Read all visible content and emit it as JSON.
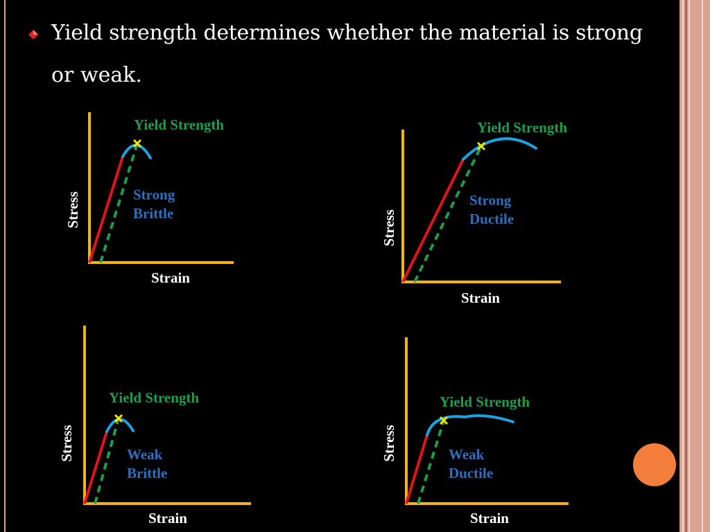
{
  "slide": {
    "title_line_1": "Yield strength determines whether the material is strong",
    "title_line_2": "or weak.",
    "bullet_icon": "diamond-bullet-icon"
  },
  "diagrams": [
    {
      "yield_label": "Yield Strength",
      "type_line_1": "Strong",
      "type_line_2": "Brittle",
      "y_axis_label": "Stress",
      "x_axis_label": "Strain"
    },
    {
      "yield_label": "Yield Strength",
      "type_line_1": "Strong",
      "type_line_2": "Ductile",
      "y_axis_label": "Stress",
      "x_axis_label": "Strain"
    },
    {
      "yield_label": "Yield Strength",
      "type_line_1": "Weak",
      "type_line_2": "Brittle",
      "y_axis_label": "Stress",
      "x_axis_label": "Strain"
    },
    {
      "yield_label": "Yield Strength",
      "type_line_1": "Weak",
      "type_line_2": "Ductile",
      "y_axis_label": "Stress",
      "x_axis_label": "Strain"
    }
  ],
  "colors": {
    "background": "#000000",
    "axis": "#f5b60a",
    "elastic_line": "#e3131b",
    "offset_line": "#1f9e4a",
    "plastic_curve": "#1aa3e0",
    "yield_marker": "#f3e600",
    "yield_label": "#1e9e4c",
    "material_type_label": "#2d6fc0",
    "border": "#d9a394",
    "button": "#f47f3d"
  }
}
